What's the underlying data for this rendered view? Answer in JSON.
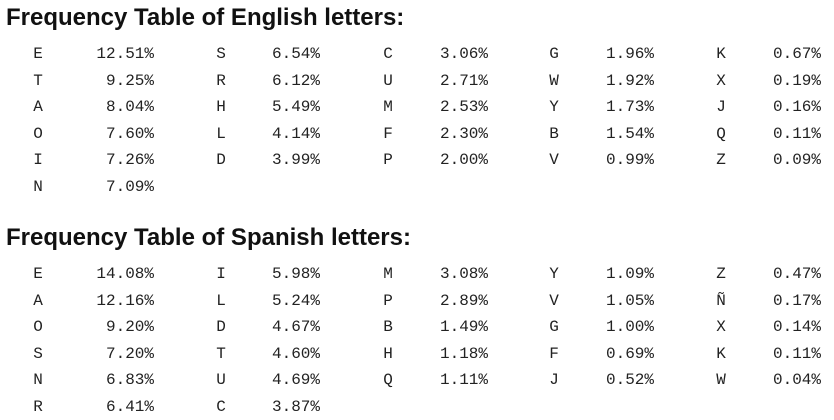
{
  "english": {
    "title": "Frequency Table of English letters:",
    "columns": [
      [
        {
          "letter": "E",
          "value": "12.51%"
        },
        {
          "letter": "T",
          "value": "9.25%"
        },
        {
          "letter": "A",
          "value": "8.04%"
        },
        {
          "letter": "O",
          "value": "7.60%"
        },
        {
          "letter": "I",
          "value": "7.26%"
        },
        {
          "letter": "N",
          "value": "7.09%"
        }
      ],
      [
        {
          "letter": "S",
          "value": "6.54%"
        },
        {
          "letter": "R",
          "value": "6.12%"
        },
        {
          "letter": "H",
          "value": "5.49%"
        },
        {
          "letter": "L",
          "value": "4.14%"
        },
        {
          "letter": "D",
          "value": "3.99%"
        }
      ],
      [
        {
          "letter": "C",
          "value": "3.06%"
        },
        {
          "letter": "U",
          "value": "2.71%"
        },
        {
          "letter": "M",
          "value": "2.53%"
        },
        {
          "letter": "F",
          "value": "2.30%"
        },
        {
          "letter": "P",
          "value": "2.00%"
        }
      ],
      [
        {
          "letter": "G",
          "value": "1.96%"
        },
        {
          "letter": "W",
          "value": "1.92%"
        },
        {
          "letter": "Y",
          "value": "1.73%"
        },
        {
          "letter": "B",
          "value": "1.54%"
        },
        {
          "letter": "V",
          "value": "0.99%"
        }
      ],
      [
        {
          "letter": "K",
          "value": "0.67%"
        },
        {
          "letter": "X",
          "value": "0.19%"
        },
        {
          "letter": "J",
          "value": "0.16%"
        },
        {
          "letter": "Q",
          "value": "0.11%"
        },
        {
          "letter": "Z",
          "value": "0.09%"
        }
      ]
    ]
  },
  "spanish": {
    "title": "Frequency Table of Spanish letters:",
    "columns": [
      [
        {
          "letter": "E",
          "value": "14.08%"
        },
        {
          "letter": "A",
          "value": "12.16%"
        },
        {
          "letter": "O",
          "value": "9.20%"
        },
        {
          "letter": "S",
          "value": "7.20%"
        },
        {
          "letter": "N",
          "value": "6.83%"
        },
        {
          "letter": "R",
          "value": "6.41%"
        }
      ],
      [
        {
          "letter": "I",
          "value": "5.98%"
        },
        {
          "letter": "L",
          "value": "5.24%"
        },
        {
          "letter": "D",
          "value": "4.67%"
        },
        {
          "letter": "T",
          "value": "4.60%"
        },
        {
          "letter": "U",
          "value": "4.69%"
        },
        {
          "letter": "C",
          "value": "3.87%"
        }
      ],
      [
        {
          "letter": "M",
          "value": "3.08%"
        },
        {
          "letter": "P",
          "value": "2.89%"
        },
        {
          "letter": "B",
          "value": "1.49%"
        },
        {
          "letter": "H",
          "value": "1.18%"
        },
        {
          "letter": "Q",
          "value": "1.11%"
        }
      ],
      [
        {
          "letter": "Y",
          "value": "1.09%"
        },
        {
          "letter": "V",
          "value": "1.05%"
        },
        {
          "letter": "G",
          "value": "1.00%"
        },
        {
          "letter": "F",
          "value": "0.69%"
        },
        {
          "letter": "J",
          "value": "0.52%"
        }
      ],
      [
        {
          "letter": "Z",
          "value": "0.47%"
        },
        {
          "letter": "Ñ",
          "value": "0.17%"
        },
        {
          "letter": "X",
          "value": "0.14%"
        },
        {
          "letter": "K",
          "value": "0.11%"
        },
        {
          "letter": "W",
          "value": "0.04%"
        }
      ]
    ]
  }
}
